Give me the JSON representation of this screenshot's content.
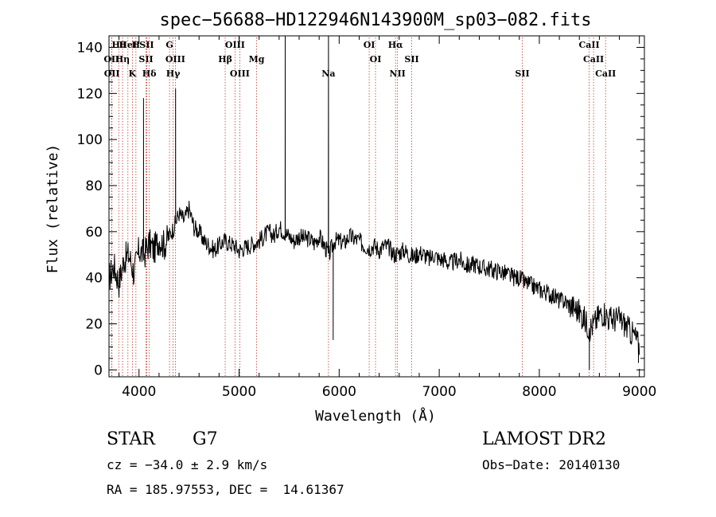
{
  "chart_data": {
    "type": "line",
    "title": "spec−56688−HD122946N143900M_sp03−082.fits",
    "xlabel": "Wavelength (Å)",
    "ylabel": "Flux (relative)",
    "xlim": [
      3700,
      9050
    ],
    "ylim": [
      -3,
      145
    ],
    "xticks": [
      4000,
      5000,
      6000,
      7000,
      8000,
      9000
    ],
    "yticks": [
      0,
      20,
      40,
      60,
      80,
      100,
      120,
      140
    ],
    "series": [
      {
        "x": [
          3700,
          3750,
          3800,
          3850,
          3900,
          3950,
          4000,
          4050,
          4100,
          4150,
          4200,
          4250,
          4300,
          4350,
          4400,
          4450,
          4500,
          4550,
          4600,
          4650,
          4700,
          4750,
          4800,
          4850,
          4900,
          4950,
          5000,
          5050,
          5100,
          5150,
          5200,
          5250,
          5300,
          5350,
          5400,
          5450,
          5500,
          5550,
          5600,
          5650,
          5700,
          5750,
          5800,
          5850,
          5900,
          5950,
          6000,
          6050,
          6100,
          6150,
          6200,
          6250,
          6300,
          6350,
          6400,
          6450,
          6500,
          6550,
          6600,
          6650,
          6700,
          6750,
          6800,
          6850,
          6900,
          6950,
          7000,
          7050,
          7100,
          7150,
          7200,
          7250,
          7300,
          7350,
          7400,
          7450,
          7500,
          7550,
          7600,
          7650,
          7700,
          7750,
          7800,
          7850,
          7900,
          7950,
          8000,
          8050,
          8100,
          8150,
          8200,
          8250,
          8300,
          8350,
          8400,
          8450,
          8500,
          8550,
          8600,
          8650,
          8700,
          8750,
          8800,
          8850,
          8900,
          8950,
          9000
        ],
        "y": [
          40,
          45,
          38,
          48,
          50,
          42,
          52,
          50,
          55,
          52,
          57,
          54,
          58,
          62,
          68,
          65,
          70,
          62,
          60,
          56,
          54,
          52,
          54,
          56,
          55,
          54,
          52,
          53,
          54,
          55,
          56,
          58,
          60,
          58,
          62,
          60,
          58,
          56,
          58,
          57,
          57,
          55,
          58,
          54,
          50,
          56,
          56,
          55,
          58,
          57,
          56,
          54,
          53,
          54,
          52,
          54,
          53,
          50,
          51,
          52,
          50,
          49,
          51,
          50,
          48,
          50,
          48,
          48,
          46,
          47,
          48,
          46,
          45,
          46,
          45,
          44,
          44,
          43,
          43,
          42,
          41,
          40,
          40,
          38,
          37,
          36,
          35,
          34,
          33,
          32,
          30,
          30,
          28,
          27,
          25,
          22,
          18,
          20,
          24,
          25,
          22,
          22,
          22,
          20,
          17,
          15,
          10
        ]
      },
      {
        "name": "emission spikes",
        "x": [
          4045,
          4365,
          5461,
          5893
        ],
        "y": [
          118,
          122,
          145,
          145
        ]
      },
      {
        "name": "absorption dips",
        "x": [
          5940,
          8500,
          8990
        ],
        "y": [
          13,
          0,
          3
        ]
      }
    ],
    "spectral_lines": [
      {
        "label": "Hθ",
        "x": 3798
      },
      {
        "label": "OII",
        "x": 3727
      },
      {
        "label": "OII",
        "x": 3729
      },
      {
        "label": "HeI",
        "x": 3889
      },
      {
        "label": "Hη",
        "x": 3835
      },
      {
        "label": "K",
        "x": 3934
      },
      {
        "label": "H",
        "x": 3969
      },
      {
        "label": "SII",
        "x": 4070
      },
      {
        "label": "Hδ",
        "x": 4102
      },
      {
        "label": "SII",
        "x": 4077
      },
      {
        "label": "OIII",
        "x": 4363
      },
      {
        "label": "Hγ",
        "x": 4341
      },
      {
        "label": "G",
        "x": 4305
      },
      {
        "label": "Hβ",
        "x": 4861
      },
      {
        "label": "OIII",
        "x": 5007
      },
      {
        "label": "OIII",
        "x": 4959
      },
      {
        "label": "Mg",
        "x": 5175
      },
      {
        "label": "Na",
        "x": 5893
      },
      {
        "label": "OI",
        "x": 6300
      },
      {
        "label": "OI",
        "x": 6363
      },
      {
        "label": "NII",
        "x": 6583
      },
      {
        "label": "Hα",
        "x": 6563
      },
      {
        "label": "SII",
        "x": 6725
      },
      {
        "label": "SII",
        "x": 7830
      },
      {
        "label": "CaII",
        "x": 8498
      },
      {
        "label": "CaII",
        "x": 8542
      },
      {
        "label": "CaII",
        "x": 8662
      }
    ]
  },
  "info": {
    "object_type": "STAR",
    "subclass": "G7",
    "survey": "LAMOST DR2",
    "redshift": "cz = −34.0 ± 2.9 km/s",
    "obs_date": "Obs−Date: 20140130",
    "coords": "RA = 185.97553, DEC =  14.61367"
  }
}
